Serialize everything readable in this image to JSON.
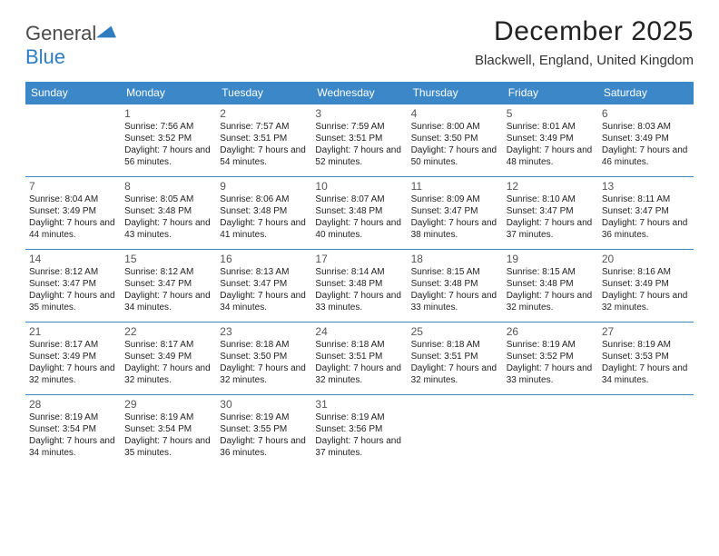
{
  "logo": {
    "word1": "General",
    "word2": "Blue"
  },
  "title": "December 2025",
  "location": "Blackwell, England, United Kingdom",
  "colors": {
    "header_bg": "#3b87c8",
    "header_text": "#ffffff",
    "border": "#3b87c8",
    "logo_gray": "#4a4a4a",
    "logo_blue": "#2f7dc0",
    "body_text": "#222222"
  },
  "weekdays": [
    "Sunday",
    "Monday",
    "Tuesday",
    "Wednesday",
    "Thursday",
    "Friday",
    "Saturday"
  ],
  "start_offset": 1,
  "days": [
    {
      "n": 1,
      "sr": "7:56 AM",
      "ss": "3:52 PM",
      "dl": "7 hours and 56 minutes."
    },
    {
      "n": 2,
      "sr": "7:57 AM",
      "ss": "3:51 PM",
      "dl": "7 hours and 54 minutes."
    },
    {
      "n": 3,
      "sr": "7:59 AM",
      "ss": "3:51 PM",
      "dl": "7 hours and 52 minutes."
    },
    {
      "n": 4,
      "sr": "8:00 AM",
      "ss": "3:50 PM",
      "dl": "7 hours and 50 minutes."
    },
    {
      "n": 5,
      "sr": "8:01 AM",
      "ss": "3:49 PM",
      "dl": "7 hours and 48 minutes."
    },
    {
      "n": 6,
      "sr": "8:03 AM",
      "ss": "3:49 PM",
      "dl": "7 hours and 46 minutes."
    },
    {
      "n": 7,
      "sr": "8:04 AM",
      "ss": "3:49 PM",
      "dl": "7 hours and 44 minutes."
    },
    {
      "n": 8,
      "sr": "8:05 AM",
      "ss": "3:48 PM",
      "dl": "7 hours and 43 minutes."
    },
    {
      "n": 9,
      "sr": "8:06 AM",
      "ss": "3:48 PM",
      "dl": "7 hours and 41 minutes."
    },
    {
      "n": 10,
      "sr": "8:07 AM",
      "ss": "3:48 PM",
      "dl": "7 hours and 40 minutes."
    },
    {
      "n": 11,
      "sr": "8:09 AM",
      "ss": "3:47 PM",
      "dl": "7 hours and 38 minutes."
    },
    {
      "n": 12,
      "sr": "8:10 AM",
      "ss": "3:47 PM",
      "dl": "7 hours and 37 minutes."
    },
    {
      "n": 13,
      "sr": "8:11 AM",
      "ss": "3:47 PM",
      "dl": "7 hours and 36 minutes."
    },
    {
      "n": 14,
      "sr": "8:12 AM",
      "ss": "3:47 PM",
      "dl": "7 hours and 35 minutes."
    },
    {
      "n": 15,
      "sr": "8:12 AM",
      "ss": "3:47 PM",
      "dl": "7 hours and 34 minutes."
    },
    {
      "n": 16,
      "sr": "8:13 AM",
      "ss": "3:47 PM",
      "dl": "7 hours and 34 minutes."
    },
    {
      "n": 17,
      "sr": "8:14 AM",
      "ss": "3:48 PM",
      "dl": "7 hours and 33 minutes."
    },
    {
      "n": 18,
      "sr": "8:15 AM",
      "ss": "3:48 PM",
      "dl": "7 hours and 33 minutes."
    },
    {
      "n": 19,
      "sr": "8:15 AM",
      "ss": "3:48 PM",
      "dl": "7 hours and 32 minutes."
    },
    {
      "n": 20,
      "sr": "8:16 AM",
      "ss": "3:49 PM",
      "dl": "7 hours and 32 minutes."
    },
    {
      "n": 21,
      "sr": "8:17 AM",
      "ss": "3:49 PM",
      "dl": "7 hours and 32 minutes."
    },
    {
      "n": 22,
      "sr": "8:17 AM",
      "ss": "3:49 PM",
      "dl": "7 hours and 32 minutes."
    },
    {
      "n": 23,
      "sr": "8:18 AM",
      "ss": "3:50 PM",
      "dl": "7 hours and 32 minutes."
    },
    {
      "n": 24,
      "sr": "8:18 AM",
      "ss": "3:51 PM",
      "dl": "7 hours and 32 minutes."
    },
    {
      "n": 25,
      "sr": "8:18 AM",
      "ss": "3:51 PM",
      "dl": "7 hours and 32 minutes."
    },
    {
      "n": 26,
      "sr": "8:19 AM",
      "ss": "3:52 PM",
      "dl": "7 hours and 33 minutes."
    },
    {
      "n": 27,
      "sr": "8:19 AM",
      "ss": "3:53 PM",
      "dl": "7 hours and 34 minutes."
    },
    {
      "n": 28,
      "sr": "8:19 AM",
      "ss": "3:54 PM",
      "dl": "7 hours and 34 minutes."
    },
    {
      "n": 29,
      "sr": "8:19 AM",
      "ss": "3:54 PM",
      "dl": "7 hours and 35 minutes."
    },
    {
      "n": 30,
      "sr": "8:19 AM",
      "ss": "3:55 PM",
      "dl": "7 hours and 36 minutes."
    },
    {
      "n": 31,
      "sr": "8:19 AM",
      "ss": "3:56 PM",
      "dl": "7 hours and 37 minutes."
    }
  ],
  "labels": {
    "sunrise": "Sunrise:",
    "sunset": "Sunset:",
    "daylight": "Daylight:"
  }
}
